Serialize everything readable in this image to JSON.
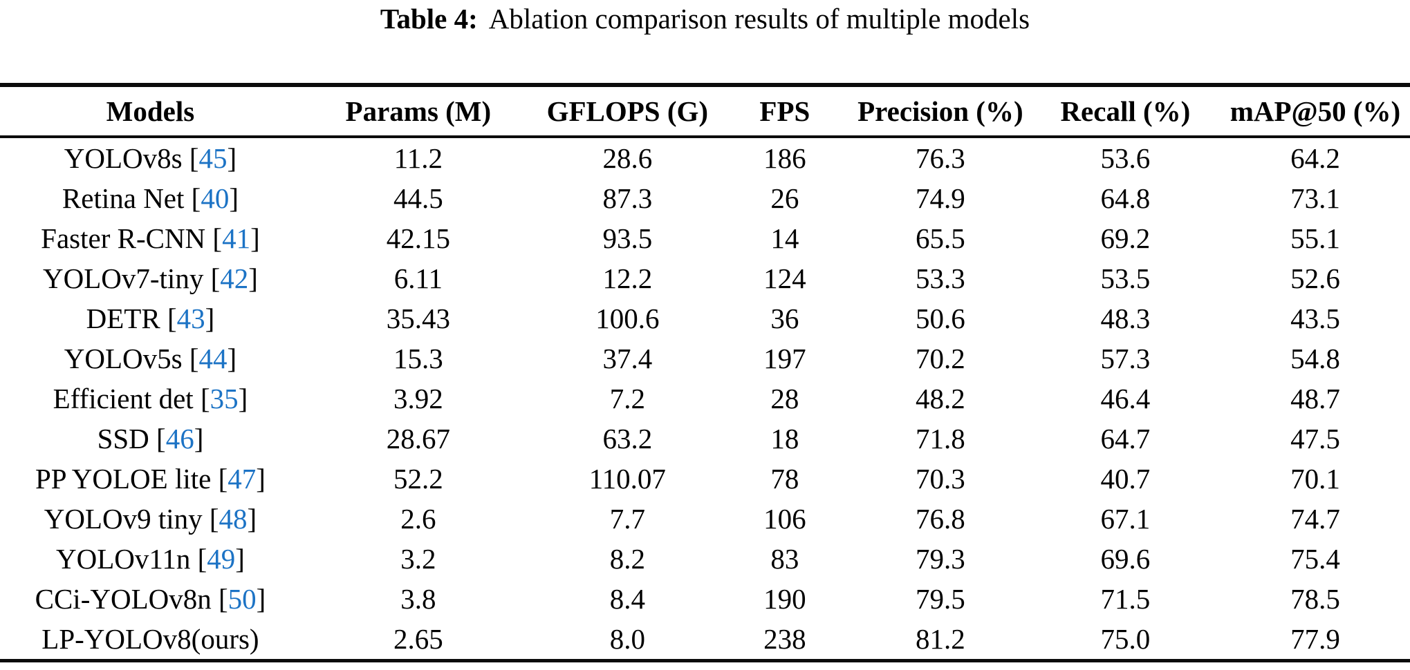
{
  "caption": {
    "label": "Table 4:",
    "text": "Ablation comparison results of multiple models"
  },
  "table": {
    "columns": [
      "Models",
      "Params (M)",
      "GFLOPS (G)",
      "FPS",
      "Precision (%)",
      "Recall (%)",
      "mAP@50 (%)"
    ],
    "rows": [
      {
        "model": "YOLOv8s",
        "cite": "45",
        "params": "11.2",
        "gflops": "28.6",
        "fps": "186",
        "precision": "76.3",
        "recall": "53.6",
        "map50": "64.2"
      },
      {
        "model": "Retina Net",
        "cite": "40",
        "params": "44.5",
        "gflops": "87.3",
        "fps": "26",
        "precision": "74.9",
        "recall": "64.8",
        "map50": "73.1"
      },
      {
        "model": "Faster R-CNN",
        "cite": "41",
        "params": "42.15",
        "gflops": "93.5",
        "fps": "14",
        "precision": "65.5",
        "recall": "69.2",
        "map50": "55.1"
      },
      {
        "model": "YOLOv7-tiny",
        "cite": "42",
        "params": "6.11",
        "gflops": "12.2",
        "fps": "124",
        "precision": "53.3",
        "recall": "53.5",
        "map50": "52.6"
      },
      {
        "model": "DETR",
        "cite": "43",
        "params": "35.43",
        "gflops": "100.6",
        "fps": "36",
        "precision": "50.6",
        "recall": "48.3",
        "map50": "43.5"
      },
      {
        "model": "YOLOv5s",
        "cite": "44",
        "params": "15.3",
        "gflops": "37.4",
        "fps": "197",
        "precision": "70.2",
        "recall": "57.3",
        "map50": "54.8"
      },
      {
        "model": "Efficient det",
        "cite": "35",
        "params": "3.92",
        "gflops": "7.2",
        "fps": "28",
        "precision": "48.2",
        "recall": "46.4",
        "map50": "48.7"
      },
      {
        "model": "SSD",
        "cite": "46",
        "params": "28.67",
        "gflops": "63.2",
        "fps": "18",
        "precision": "71.8",
        "recall": "64.7",
        "map50": "47.5"
      },
      {
        "model": "PP YOLOE lite",
        "cite": "47",
        "params": "52.2",
        "gflops": "110.07",
        "fps": "78",
        "precision": "70.3",
        "recall": "40.7",
        "map50": "70.1"
      },
      {
        "model": "YOLOv9 tiny",
        "cite": "48",
        "params": "2.6",
        "gflops": "7.7",
        "fps": "106",
        "precision": "76.8",
        "recall": "67.1",
        "map50": "74.7"
      },
      {
        "model": "YOLOv11n",
        "cite": "49",
        "params": "3.2",
        "gflops": "8.2",
        "fps": "83",
        "precision": "79.3",
        "recall": "69.6",
        "map50": "75.4"
      },
      {
        "model": "CCi-YOLOv8n",
        "cite": "50",
        "params": "3.8",
        "gflops": "8.4",
        "fps": "190",
        "precision": "79.5",
        "recall": "71.5",
        "map50": "78.5"
      },
      {
        "model": "LP-YOLOv8(ours)",
        "cite": "",
        "params": "2.65",
        "gflops": "8.0",
        "fps": "238",
        "precision": "81.2",
        "recall": "75.0",
        "map50": "77.9"
      }
    ]
  },
  "colors": {
    "citation_blue": "#1c73c5",
    "text": "#000000",
    "rule": "#0b0b0b"
  }
}
